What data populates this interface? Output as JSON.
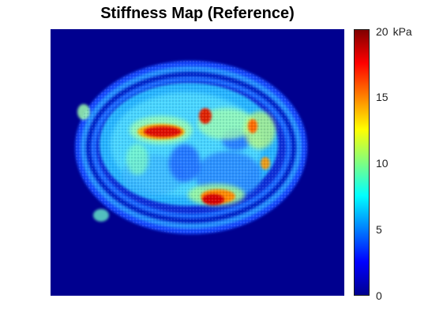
{
  "figure": {
    "title": "Stiffness Map (Reference)"
  },
  "colorbar": {
    "colormap": "jet",
    "min": 0,
    "max": 20,
    "unit": "kPa",
    "tick_labels": [
      "0",
      "5",
      "10",
      "15",
      "20"
    ],
    "tick_values": [
      0,
      5,
      10,
      15,
      20
    ]
  },
  "image": {
    "content": "brain-shaped stiffness elastogram",
    "background_color": "#00008f",
    "colors": {
      "background": "#00008f",
      "low": "#1e64ff",
      "mid": "#33ccff",
      "mid_high": "#9dffb0",
      "high": "#ffd000",
      "peak": "#d80000"
    }
  }
}
